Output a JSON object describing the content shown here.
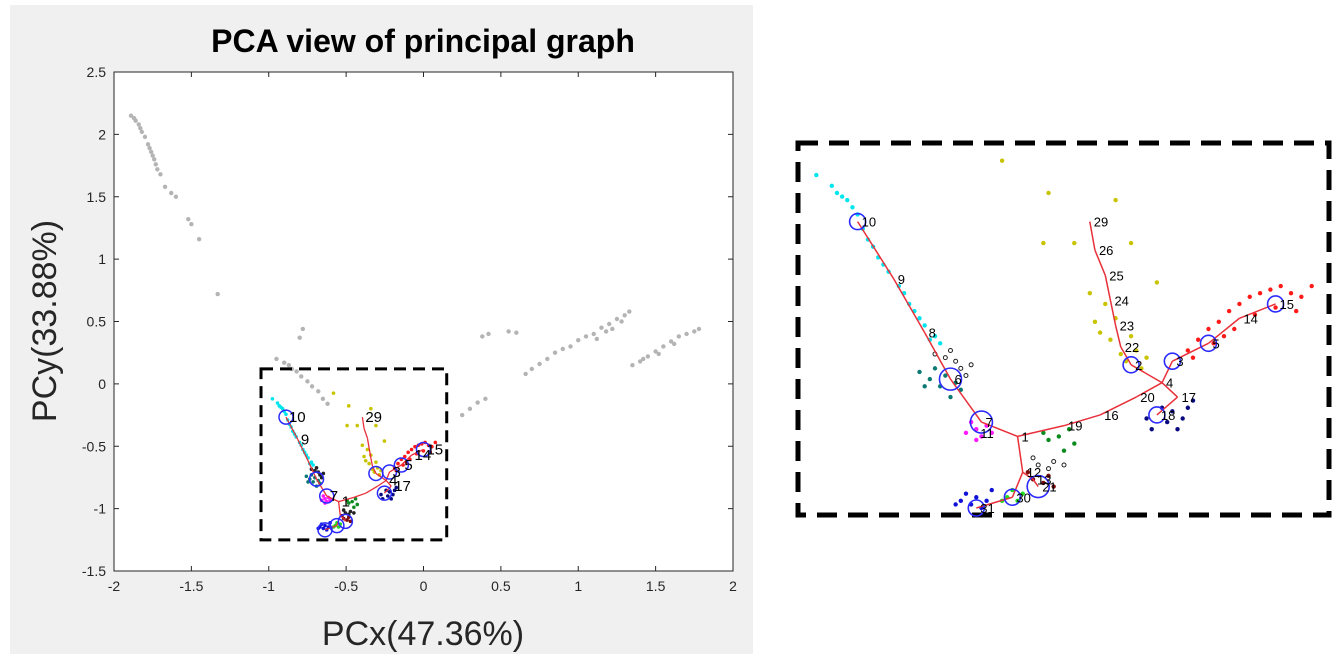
{
  "chart_data": [
    {
      "type": "scatter",
      "title": "PCA view of principal graph",
      "xlabel": "PCx(47.36%)",
      "ylabel": "PCy(33.88%)",
      "xlim": [
        -2,
        2
      ],
      "ylim": [
        -1.5,
        2.5
      ],
      "xticks": [
        "-2",
        "-1.5",
        "-1",
        "-0.5",
        "0",
        "0.5",
        "1",
        "1.5",
        "2"
      ],
      "yticks": [
        "-1.5",
        "-1",
        "-0.5",
        "0",
        "0.5",
        "1",
        "1.5",
        "2",
        "2.5"
      ],
      "grid": false,
      "background_points_color": "#b4b4b4",
      "background_points": [
        [
          -1.89,
          2.15
        ],
        [
          -1.87,
          2.13
        ],
        [
          -1.86,
          2.11
        ],
        [
          -1.84,
          2.08
        ],
        [
          -1.83,
          2.05
        ],
        [
          -1.82,
          2.02
        ],
        [
          -1.8,
          1.98
        ],
        [
          -1.78,
          1.92
        ],
        [
          -1.77,
          1.89
        ],
        [
          -1.76,
          1.86
        ],
        [
          -1.75,
          1.83
        ],
        [
          -1.74,
          1.8
        ],
        [
          -1.73,
          1.76
        ],
        [
          -1.72,
          1.72
        ],
        [
          -1.7,
          1.68
        ],
        [
          -1.67,
          1.58
        ],
        [
          -1.63,
          1.53
        ],
        [
          -1.6,
          1.5
        ],
        [
          -1.52,
          1.32
        ],
        [
          -1.5,
          1.28
        ],
        [
          -1.45,
          1.16
        ],
        [
          -1.33,
          0.72
        ],
        [
          -0.8,
          0.37
        ],
        [
          -0.78,
          0.44
        ],
        [
          -0.95,
          0.2
        ],
        [
          -0.9,
          0.17
        ],
        [
          -0.87,
          0.15
        ],
        [
          -0.85,
          0.12
        ],
        [
          -0.82,
          0.1
        ],
        [
          -0.79,
          0.06
        ],
        [
          -0.75,
          0.02
        ],
        [
          -0.72,
          -0.02
        ],
        [
          -0.68,
          -0.06
        ],
        [
          -0.65,
          -0.12
        ],
        [
          -0.62,
          -0.16
        ],
        [
          0.25,
          -0.25
        ],
        [
          0.3,
          -0.2
        ],
        [
          0.35,
          -0.15
        ],
        [
          0.4,
          -0.12
        ],
        [
          0.38,
          0.38
        ],
        [
          0.42,
          0.4
        ],
        [
          0.55,
          0.42
        ],
        [
          0.6,
          0.41
        ],
        [
          0.66,
          0.08
        ],
        [
          0.7,
          0.12
        ],
        [
          0.75,
          0.16
        ],
        [
          0.8,
          0.2
        ],
        [
          0.85,
          0.25
        ],
        [
          0.9,
          0.28
        ],
        [
          0.95,
          0.3
        ],
        [
          1.0,
          0.35
        ],
        [
          1.05,
          0.38
        ],
        [
          1.1,
          0.4
        ],
        [
          1.15,
          0.45
        ],
        [
          1.2,
          0.48
        ],
        [
          1.25,
          0.52
        ],
        [
          1.3,
          0.55
        ],
        [
          1.33,
          0.58
        ],
        [
          1.28,
          0.5
        ],
        [
          1.22,
          0.44
        ],
        [
          1.18,
          0.42
        ],
        [
          1.12,
          0.36
        ],
        [
          1.35,
          0.15
        ],
        [
          1.4,
          0.18
        ],
        [
          1.45,
          0.22
        ],
        [
          1.5,
          0.26
        ],
        [
          1.55,
          0.3
        ],
        [
          1.6,
          0.34
        ],
        [
          1.65,
          0.38
        ],
        [
          1.7,
          0.4
        ],
        [
          1.75,
          0.42
        ],
        [
          1.78,
          0.44
        ],
        [
          1.62,
          0.32
        ],
        [
          1.52,
          0.24
        ],
        [
          1.42,
          0.2
        ]
      ],
      "zoom_box": {
        "xlim": [
          -1.05,
          0.15
        ],
        "ylim": [
          -1.25,
          0.12
        ]
      },
      "node_labels": [
        "10",
        "9",
        "29",
        "5",
        "4",
        "7",
        "17",
        "3",
        "1",
        "14",
        "15"
      ]
    },
    {
      "type": "scatter",
      "title": "",
      "xlabel": "",
      "ylabel": "",
      "graph_nodes": [
        {
          "label": "10",
          "x": 0.1,
          "y": 0.8
        },
        {
          "label": "9",
          "x": 0.17,
          "y": 0.64
        },
        {
          "label": "8",
          "x": 0.23,
          "y": 0.49
        },
        {
          "label": "6",
          "x": 0.28,
          "y": 0.36
        },
        {
          "label": "7",
          "x": 0.34,
          "y": 0.24
        },
        {
          "label": "11",
          "x": 0.33,
          "y": 0.21
        },
        {
          "label": "1",
          "x": 0.41,
          "y": 0.2
        },
        {
          "label": "19",
          "x": 0.5,
          "y": 0.23
        },
        {
          "label": "16",
          "x": 0.57,
          "y": 0.26
        },
        {
          "label": "20",
          "x": 0.64,
          "y": 0.31
        },
        {
          "label": "4",
          "x": 0.69,
          "y": 0.35
        },
        {
          "label": "17",
          "x": 0.72,
          "y": 0.31
        },
        {
          "label": "18",
          "x": 0.68,
          "y": 0.26
        },
        {
          "label": "3",
          "x": 0.71,
          "y": 0.41
        },
        {
          "label": "5",
          "x": 0.78,
          "y": 0.46
        },
        {
          "label": "14",
          "x": 0.84,
          "y": 0.53
        },
        {
          "label": "15",
          "x": 0.91,
          "y": 0.57
        },
        {
          "label": "2",
          "x": 0.63,
          "y": 0.4
        },
        {
          "label": "22",
          "x": 0.61,
          "y": 0.45
        },
        {
          "label": "23",
          "x": 0.6,
          "y": 0.51
        },
        {
          "label": "24",
          "x": 0.59,
          "y": 0.58
        },
        {
          "label": "25",
          "x": 0.58,
          "y": 0.65
        },
        {
          "label": "26",
          "x": 0.56,
          "y": 0.72
        },
        {
          "label": "29",
          "x": 0.55,
          "y": 0.8
        },
        {
          "label": "12",
          "x": 0.42,
          "y": 0.1
        },
        {
          "label": "13",
          "x": 0.44,
          "y": 0.08
        },
        {
          "label": "21",
          "x": 0.45,
          "y": 0.06
        },
        {
          "label": "30",
          "x": 0.4,
          "y": 0.03
        },
        {
          "label": "31",
          "x": 0.33,
          "y": 0.0
        }
      ],
      "graph_edges": [
        [
          "10",
          "9"
        ],
        [
          "9",
          "8"
        ],
        [
          "8",
          "6"
        ],
        [
          "6",
          "7"
        ],
        [
          "7",
          "1"
        ],
        [
          "1",
          "19"
        ],
        [
          "19",
          "16"
        ],
        [
          "16",
          "20"
        ],
        [
          "20",
          "4"
        ],
        [
          "4",
          "3"
        ],
        [
          "3",
          "5"
        ],
        [
          "5",
          "14"
        ],
        [
          "14",
          "15"
        ],
        [
          "4",
          "17"
        ],
        [
          "17",
          "18"
        ],
        [
          "4",
          "2"
        ],
        [
          "2",
          "22"
        ],
        [
          "22",
          "23"
        ],
        [
          "23",
          "24"
        ],
        [
          "24",
          "25"
        ],
        [
          "25",
          "26"
        ],
        [
          "26",
          "29"
        ],
        [
          "1",
          "12"
        ],
        [
          "12",
          "30"
        ],
        [
          "30",
          "31"
        ],
        [
          "12",
          "13"
        ],
        [
          "13",
          "21"
        ]
      ],
      "circled_nodes": [
        "10",
        "6",
        "7",
        "2",
        "3",
        "5",
        "15",
        "18",
        "21",
        "30",
        "31"
      ],
      "edge_color": "#e8303a",
      "circle_color": "#2b2bff",
      "cluster_colors": {
        "cyan": "#00e5ee",
        "teal": "#0c7a72",
        "black": "#222222",
        "magenta": "#ff1aff",
        "blue": "#1010d8",
        "green": "#22dd22",
        "darkred": "#7a0a0a",
        "olive": "#c8c400",
        "red": "#ff1a1a",
        "navy": "#0a0a80",
        "darkgreen": "#0b8a1f"
      }
    }
  ]
}
